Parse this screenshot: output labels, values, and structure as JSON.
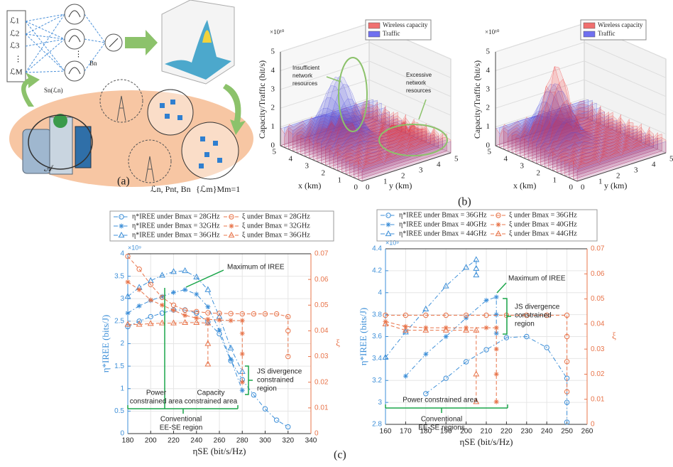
{
  "panel_a": {
    "label": "(a)",
    "inputs": [
      "ℒ1",
      "ℒ2",
      "ℒ3",
      "ℒM"
    ],
    "output": "Bn",
    "function": "Sn(ℒn)",
    "set": "𝒜",
    "bs_params": "ℒn, Pnt, Bn",
    "user_set": "{ℒm}Mm=1"
  },
  "panel_b": {
    "label": "(b)",
    "plots": [
      {
        "legend": [
          "Wireless capacity",
          "Traffic"
        ],
        "multiplier": "×10¹⁰",
        "zlabel": "Capacity/Traffic (bit/s)",
        "xlabel": "x (km)",
        "ylabel": "y (km)",
        "zticks": [
          0,
          1,
          2,
          3,
          4,
          5
        ],
        "xticks": [
          0,
          1,
          2,
          3,
          4,
          5
        ],
        "yticks": [
          0,
          1,
          2,
          3,
          4,
          5
        ],
        "annotations": [
          [
            "Insufficient",
            "network",
            "resources"
          ],
          [
            "Excessive",
            "network",
            "resources"
          ]
        ]
      },
      {
        "legend": [
          "Wireless capacity",
          "Traffic"
        ],
        "multiplier": "×10¹⁰",
        "zlabel": "Capacity/Traffic (bit/s)",
        "xlabel": "x (km)",
        "ylabel": "y (km)",
        "zticks": [
          0,
          1,
          2,
          3,
          4,
          5
        ],
        "xticks": [
          0,
          1,
          2,
          3,
          4,
          5
        ],
        "yticks": [
          0,
          1,
          2,
          3,
          4,
          5
        ]
      }
    ]
  },
  "panel_c_label": "(c)",
  "chart_data": [
    {
      "type": "line",
      "xlabel": "ηSE (bit/s/Hz)",
      "ylabel": "η*IREE (bits/J)",
      "y2label": "ξ",
      "y_multiplier": "×10⁹",
      "grid": true,
      "xlim": [
        180,
        340
      ],
      "xticks": [
        180,
        200,
        220,
        240,
        260,
        280,
        300,
        320,
        340
      ],
      "ylim": [
        0,
        4
      ],
      "yticks": [
        0,
        0.5,
        1,
        1.5,
        2,
        2.5,
        3,
        3.5,
        4
      ],
      "y2lim": [
        0,
        0.07
      ],
      "y2ticks": [
        0,
        0.01,
        0.02,
        0.03,
        0.04,
        0.05,
        0.06,
        0.07
      ],
      "series": [
        {
          "name": "η*IREE under Bmax = 28GHz",
          "color": "#3d8fd8",
          "marker": "o",
          "linestyle": "dashdot",
          "x": [
            180,
            190,
            200,
            210,
            220,
            230,
            240,
            250,
            260,
            270,
            280,
            290,
            300,
            310,
            320
          ],
          "values": [
            2.38,
            2.5,
            2.6,
            2.68,
            2.75,
            2.75,
            2.68,
            2.48,
            2.22,
            1.62,
            1.2,
            0.86,
            0.55,
            0.3,
            0.15
          ]
        },
        {
          "name": "η*IREE under Bmax = 32GHz",
          "color": "#3d8fd8",
          "marker": "*",
          "linestyle": "dashdot",
          "x": [
            180,
            190,
            200,
            210,
            220,
            230,
            240,
            250,
            260,
            270,
            280
          ],
          "values": [
            2.68,
            2.84,
            2.96,
            3.05,
            3.14,
            3.2,
            3.1,
            2.82,
            2.3,
            1.65,
            0.96
          ]
        },
        {
          "name": "η*IREE under Bmax = 36GHz",
          "color": "#3d8fd8",
          "marker": "^",
          "linestyle": "dashdot",
          "x": [
            180,
            190,
            200,
            210,
            220,
            230,
            240,
            250,
            260,
            270,
            280
          ],
          "values": [
            3.05,
            3.25,
            3.4,
            3.52,
            3.6,
            3.62,
            3.48,
            3.2,
            2.6,
            1.9,
            1.38
          ]
        },
        {
          "name": "ξ under Bmax = 28GHz",
          "color": "#e8744a",
          "marker": "o",
          "linestyle": "dash",
          "axis": "y2",
          "x": [
            180,
            190,
            200,
            210,
            220,
            230,
            240,
            250,
            260,
            270,
            280,
            290,
            300,
            310,
            320,
            320,
            320
          ],
          "values": [
            0.069,
            0.064,
            0.058,
            0.053,
            0.05,
            0.048,
            0.0475,
            0.047,
            0.0468,
            0.0467,
            0.0466,
            0.0466,
            0.0466,
            0.0466,
            0.0455,
            0.04,
            0.03
          ]
        },
        {
          "name": "ξ under Bmax = 32GHz",
          "color": "#e8744a",
          "marker": "*",
          "linestyle": "dash",
          "axis": "y2",
          "x": [
            180,
            190,
            200,
            210,
            220,
            230,
            240,
            250,
            260,
            270,
            280,
            280,
            280,
            280
          ],
          "values": [
            0.059,
            0.056,
            0.052,
            0.05,
            0.048,
            0.046,
            0.045,
            0.0445,
            0.0442,
            0.044,
            0.044,
            0.039,
            0.031,
            0.02
          ]
        },
        {
          "name": "ξ under Bmax = 36GHz",
          "color": "#e8744a",
          "marker": "^",
          "linestyle": "dash",
          "axis": "y2",
          "x": [
            180,
            190,
            200,
            210,
            220,
            230,
            240,
            250,
            250,
            250
          ],
          "values": [
            0.0425,
            0.0425,
            0.0428,
            0.043,
            0.043,
            0.0432,
            0.0432,
            0.043,
            0.035,
            0.027
          ]
        }
      ],
      "annotations": [
        [
          "Maximum of IREE"
        ],
        [
          "JS divergence",
          "constrained",
          "region"
        ],
        [
          "Power",
          "constrained area"
        ],
        [
          "Capacity",
          "constrained area"
        ],
        [
          "Conventional",
          "EE-SE region"
        ]
      ]
    },
    {
      "type": "line",
      "xlabel": "ηSE (bit/s/Hz)",
      "ylabel": "η*IREE (bits/J)",
      "y2label": "ξ",
      "y_multiplier": "×10⁹",
      "grid": true,
      "xlim": [
        160,
        260
      ],
      "xticks": [
        160,
        170,
        180,
        190,
        200,
        210,
        220,
        230,
        240,
        250,
        260
      ],
      "ylim": [
        2.8,
        4.4
      ],
      "yticks": [
        2.8,
        3,
        3.2,
        3.4,
        3.6,
        3.8,
        4,
        4.2,
        4.4
      ],
      "y2lim": [
        0,
        0.07
      ],
      "y2ticks": [
        0,
        0.01,
        0.02,
        0.03,
        0.04,
        0.05,
        0.06,
        0.07
      ],
      "series": [
        {
          "name": "η*IREE under Bmax = 36GHz",
          "color": "#3d8fd8",
          "marker": "o",
          "linestyle": "dashdot",
          "x": [
            180,
            190,
            200,
            210,
            220,
            230,
            240,
            250,
            250,
            250
          ],
          "values": [
            3.08,
            3.22,
            3.37,
            3.48,
            3.59,
            3.6,
            3.5,
            3.22,
            3.0,
            2.82
          ]
        },
        {
          "name": "η*IREE under Bmax = 40GHz",
          "color": "#3d8fd8",
          "marker": "*",
          "linestyle": "dashdot",
          "x": [
            170,
            180,
            190,
            200,
            210,
            215,
            215,
            215
          ],
          "values": [
            3.24,
            3.44,
            3.6,
            3.77,
            3.93,
            3.96,
            3.8,
            3.63
          ]
        },
        {
          "name": "η*IREE under Bmax = 44GHz",
          "color": "#3d8fd8",
          "marker": "^",
          "linestyle": "dashdot",
          "x": [
            160,
            170,
            180,
            190,
            200,
            205,
            205,
            205
          ],
          "values": [
            3.41,
            3.64,
            3.85,
            4.06,
            4.23,
            4.3,
            4.22,
            4.16
          ]
        },
        {
          "name": "ξ under Bmax = 36GHz",
          "color": "#e8744a",
          "marker": "o",
          "linestyle": "dash",
          "axis": "y2",
          "x": [
            160,
            170,
            180,
            190,
            200,
            210,
            220,
            230,
            240,
            250,
            250,
            250,
            250
          ],
          "values": [
            0.0435,
            0.0435,
            0.0435,
            0.0435,
            0.0435,
            0.0435,
            0.0435,
            0.0435,
            0.0435,
            0.0435,
            0.035,
            0.025,
            0.013
          ]
        },
        {
          "name": "ξ under Bmax = 40GHz",
          "color": "#e8744a",
          "marker": "*",
          "linestyle": "dash",
          "axis": "y2",
          "x": [
            160,
            170,
            180,
            190,
            200,
            210,
            215,
            215,
            215,
            215
          ],
          "values": [
            0.041,
            0.039,
            0.0385,
            0.0385,
            0.0385,
            0.0385,
            0.0385,
            0.03,
            0.02,
            0.009
          ]
        },
        {
          "name": "ξ under Bmax = 44GHz",
          "color": "#e8744a",
          "marker": "^",
          "linestyle": "dash",
          "axis": "y2",
          "x": [
            160,
            170,
            180,
            190,
            200,
            205,
            205,
            205
          ],
          "values": [
            0.04,
            0.0375,
            0.0375,
            0.0375,
            0.0375,
            0.0375,
            0.02,
            0.009
          ]
        }
      ],
      "annotations": [
        [
          "Maximum of IREE"
        ],
        [
          "JS divergence",
          "constrained",
          "region"
        ],
        [
          "Power constrained area"
        ],
        [
          "Conventional",
          "EE-SE regions"
        ]
      ]
    }
  ]
}
